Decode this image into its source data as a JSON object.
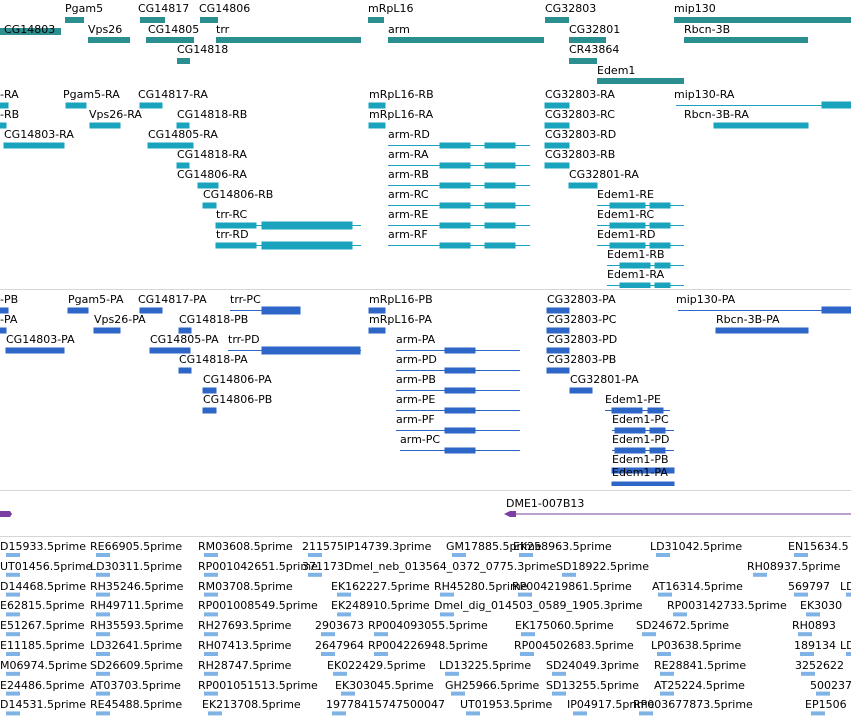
{
  "colors": {
    "gene": "#2b8f8f",
    "flybase_transcript": "#19a3bd",
    "refseq_transcript": "#2e66c8",
    "clone": "#7a3fa0",
    "est": "#7fb2e5",
    "separator": "#d6d6d6",
    "text": "#000000"
  },
  "gene_track": {
    "labels": [
      "Pgam5",
      "CG14817",
      "CG14806",
      "mRpL16",
      "CG32803",
      "mip130",
      "CG14803",
      "Vps26",
      "CG14805",
      "trr",
      "arm",
      "CG32801",
      "Rbcn-3B",
      "CG14818",
      "CR43864",
      "Edem1"
    ]
  },
  "flybase_track": {
    "labels": [
      "-RA",
      "Pgam5-RA",
      "CG14817-RA",
      "mRpL16-RB",
      "CG32803-RA",
      "mip130-RA",
      "-RB",
      "Vps26-RA",
      "CG14818-RB",
      "mRpL16-RA",
      "CG32803-RC",
      "Rbcn-3B-RA",
      "CG14803-RA",
      "CG14805-RA",
      "arm-RD",
      "CG32803-RD",
      "CG14818-RA",
      "arm-RA",
      "CG32803-RB",
      "CG14806-RA",
      "arm-RB",
      "CG32801-RA",
      "CG14806-RB",
      "arm-RC",
      "Edem1-RE",
      "trr-RC",
      "arm-RE",
      "Edem1-RC",
      "trr-RD",
      "arm-RF",
      "Edem1-RD",
      "Edem1-RB",
      "Edem1-RA"
    ]
  },
  "refseq_track": {
    "labels": [
      "-PB",
      "Pgam5-PA",
      "CG14817-PA",
      "trr-PC",
      "mRpL16-PB",
      "CG32803-PA",
      "mip130-PA",
      "-PA",
      "Vps26-PA",
      "CG14818-PB",
      "mRpL16-PA",
      "CG32803-PC",
      "Rbcn-3B-PA",
      "CG14803-PA",
      "CG14805-PA",
      "trr-PD",
      "arm-PA",
      "CG32803-PD",
      "CG14818-PA",
      "arm-PD",
      "CG32803-PB",
      "CG14806-PA",
      "arm-PB",
      "CG32801-PA",
      "CG14806-PB",
      "arm-PE",
      "Edem1-PE",
      "arm-PF",
      "Edem1-PC",
      "arm-PC",
      "Edem1-PD",
      "Edem1-PB",
      "Edem1-PA"
    ]
  },
  "clone_track": {
    "labels": [
      "DME1-007B13"
    ]
  },
  "est_track": {
    "rows": [
      [
        "D15933.5prime",
        "RE66905.5prime",
        "RM03608.5prime",
        "211575IP14739.3prime",
        "GM17885.5prime",
        "EK258963.5prime",
        "LD31042.5prime",
        "EN15634.5"
      ],
      [
        "UT01456.5prime",
        "LD30311.5prime",
        "RP001042651.5prime",
        "371173Dmel_neb_013564_0372_0775.3prime",
        "SD18922.5prime",
        "RH08937.5prime"
      ],
      [
        "D14468.5prime",
        "RH35246.5prime",
        "RM03708.5prime",
        "EK162227.5prime",
        "RH45280.5prime",
        "RP004219861.5prime",
        "AT16314.5prime",
        "569797",
        "LD"
      ],
      [
        "E62815.5prime",
        "RH49711.5prime",
        "RP001008549.5prime",
        "EK248910.5prime",
        "Dmel_dig_014503_0589_1905.3prime",
        "RP003142733.5prime",
        "EK3030"
      ],
      [
        "E51267.5prime",
        "RH35593.5prime",
        "RH27693.5prime",
        "2903673",
        "RP004093055.5prime",
        "EK175060.5prime",
        "SD24672.5prime",
        "RH0893"
      ],
      [
        "E11185.5prime",
        "LD32641.5prime",
        "RH07413.5prime",
        "2647964",
        "RP004226948.5prime",
        "RP004502683.5prime",
        "LP03638.5prime",
        "189134",
        "LD"
      ],
      [
        "M06974.5prime",
        "SD26609.5prime",
        "RH28747.5prime",
        "EK022429.5prime",
        "LD13225.5prime",
        "SD24049.3prime",
        "RE28841.5prime",
        "3252622"
      ],
      [
        "E24486.5prime",
        "AT03703.5prime",
        "RP001051513.5prime",
        "EK303045.5prime",
        "GH25966.5prime",
        "SD13255.5prime",
        "AT25224.5prime",
        "500237"
      ],
      [
        "D14531.5prime",
        "RE45488.5prime",
        "EK213708.5prime",
        "19778415747500047",
        "UT01953.5prime",
        "IP04917.5prime",
        "RP003677873.5prime",
        "EP1506"
      ]
    ]
  }
}
